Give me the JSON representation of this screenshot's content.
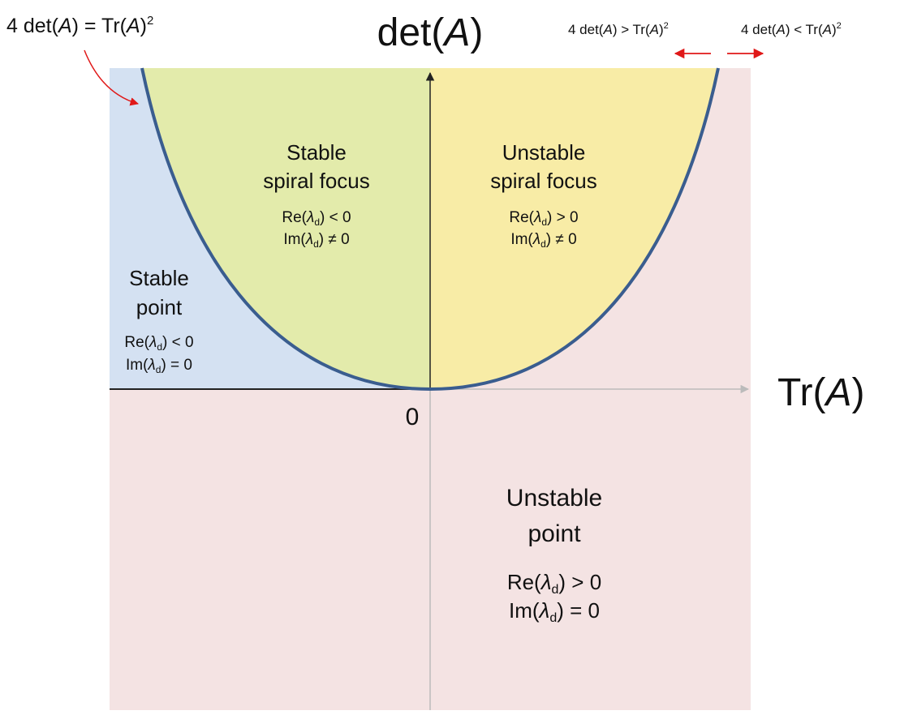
{
  "annotations": {
    "curve_eq": {
      "pre": "4 det(",
      "A1": "A",
      "mid": ") = Tr(",
      "A2": "A",
      "post": ")",
      "sup": "2"
    },
    "left_of_curve": {
      "pre": "4 det(",
      "A1": "A",
      "mid": ") > Tr(",
      "A2": "A",
      "post": ")",
      "sup": "2"
    },
    "right_of_curve": {
      "pre": "4 det(",
      "A1": "A",
      "mid": ") < Tr(",
      "A2": "A",
      "post": ")",
      "sup": "2"
    }
  },
  "axes": {
    "y_label": {
      "pre": "det(",
      "A": "A",
      "post": ")"
    },
    "x_label": {
      "pre": "Tr(",
      "A": "A",
      "post": ")"
    },
    "origin": "0"
  },
  "regions": {
    "stable_focus": {
      "line1": "Stable",
      "line2": "spiral focus",
      "cond1": {
        "pre": "Re(",
        "lam": "λ",
        "sub": "d",
        "post": ") < 0"
      },
      "cond2": {
        "pre": "Im(",
        "lam": "λ",
        "sub": "d",
        "post": ") ≠ 0"
      }
    },
    "unstable_focus": {
      "line1": "Unstable",
      "line2": "spiral focus",
      "cond1": {
        "pre": "Re(",
        "lam": "λ",
        "sub": "d",
        "post": ") > 0"
      },
      "cond2": {
        "pre": "Im(",
        "lam": "λ",
        "sub": "d",
        "post": ") ≠ 0"
      }
    },
    "stable_point": {
      "line1": "Stable",
      "line2": "point",
      "cond1": {
        "pre": "Re(",
        "lam": "λ",
        "sub": "d",
        "post": ") < 0"
      },
      "cond2": {
        "pre": "Im(",
        "lam": "λ",
        "sub": "d",
        "post": ") = 0"
      }
    },
    "unstable_point": {
      "line1": "Unstable",
      "line2": "point",
      "cond1": {
        "pre": "Re(",
        "lam": "λ",
        "sub": "d",
        "post": ") > 0"
      },
      "cond2": {
        "pre": "Im(",
        "lam": "λ",
        "sub": "d",
        "post": ") = 0"
      }
    }
  },
  "colors": {
    "stable_point_fill": "#d4e1f2",
    "unstable_point_fill": "#f4e3e3",
    "stable_focus_fill": "#e3ebab",
    "unstable_focus_fill": "#f8eca6",
    "parabola": "#3a5d8f",
    "arrow_red": "#e01818"
  }
}
